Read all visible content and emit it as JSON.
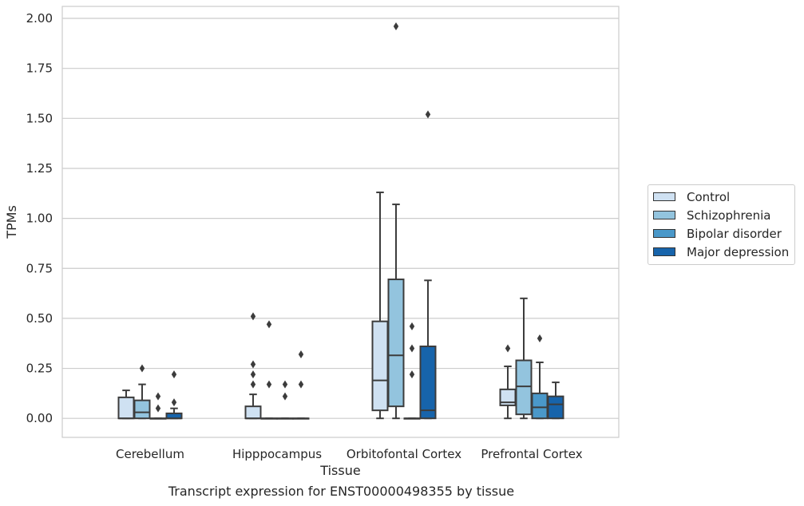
{
  "chart_data": {
    "type": "box",
    "caption": "Transcript expression for ENST00000498355 by tissue",
    "xlabel": "Tissue",
    "ylabel": "TPMs",
    "ylim": [
      -0.095,
      2.06
    ],
    "yticks": [
      "0.00",
      "0.25",
      "0.50",
      "0.75",
      "1.00",
      "1.25",
      "1.50",
      "1.75",
      "2.00"
    ],
    "ytick_values": [
      0,
      0.25,
      0.5,
      0.75,
      1.0,
      1.25,
      1.5,
      1.75,
      2.0
    ],
    "grid": "horizontal",
    "legend_position": "right",
    "categories": [
      "Cerebellum",
      "Hipppocampus",
      "Orbitofontal Cortex",
      "Prefrontal Cortex"
    ],
    "series": [
      {
        "name": "Control",
        "color": "#cfe1f2",
        "boxes": [
          {
            "whislo": 0,
            "q1": 0,
            "med": 0,
            "q3": 0.105,
            "whishi": 0.14,
            "fliers": []
          },
          {
            "whislo": 0,
            "q1": 0,
            "med": 0,
            "q3": 0.06,
            "whishi": 0.12,
            "fliers": [
              0.17,
              0.22,
              0.27,
              0.51
            ]
          },
          {
            "whislo": 0,
            "q1": 0.04,
            "med": 0.19,
            "q3": 0.485,
            "whishi": 1.13,
            "fliers": []
          },
          {
            "whislo": 0,
            "q1": 0.065,
            "med": 0.08,
            "q3": 0.145,
            "whishi": 0.26,
            "fliers": [
              0.35
            ]
          }
        ]
      },
      {
        "name": "Schizophrenia",
        "color": "#93c4de",
        "boxes": [
          {
            "whislo": 0,
            "q1": 0,
            "med": 0.03,
            "q3": 0.09,
            "whishi": 0.17,
            "fliers": [
              0.25
            ]
          },
          {
            "whislo": 0,
            "q1": 0,
            "med": 0,
            "q3": 0,
            "whishi": 0,
            "fliers": [
              0.17,
              0.47
            ]
          },
          {
            "whislo": 0,
            "q1": 0.06,
            "med": 0.315,
            "q3": 0.695,
            "whishi": 1.07,
            "fliers": [
              1.96
            ]
          },
          {
            "whislo": 0,
            "q1": 0.02,
            "med": 0.16,
            "q3": 0.29,
            "whishi": 0.6,
            "fliers": []
          }
        ]
      },
      {
        "name": "Bipolar disorder",
        "color": "#4a98c9",
        "boxes": [
          {
            "whislo": 0,
            "q1": 0,
            "med": 0,
            "q3": 0,
            "whishi": 0,
            "fliers": [
              0.05,
              0.11
            ]
          },
          {
            "whislo": 0,
            "q1": 0,
            "med": 0,
            "q3": 0,
            "whishi": 0,
            "fliers": [
              0.11,
              0.17
            ]
          },
          {
            "whislo": 0,
            "q1": 0,
            "med": 0,
            "q3": 0,
            "whishi": 0,
            "fliers": [
              0.22,
              0.35,
              0.46
            ]
          },
          {
            "whislo": 0,
            "q1": 0,
            "med": 0.055,
            "q3": 0.125,
            "whishi": 0.28,
            "fliers": [
              0.4
            ]
          }
        ]
      },
      {
        "name": "Major depression",
        "color": "#1764ab",
        "boxes": [
          {
            "whislo": 0,
            "q1": 0,
            "med": 0,
            "q3": 0.025,
            "whishi": 0.05,
            "fliers": [
              0.08,
              0.22
            ]
          },
          {
            "whislo": 0,
            "q1": 0,
            "med": 0,
            "q3": 0,
            "whishi": 0,
            "fliers": [
              0.17,
              0.32
            ]
          },
          {
            "whislo": 0,
            "q1": 0,
            "med": 0.04,
            "q3": 0.36,
            "whishi": 0.69,
            "fliers": [
              1.52
            ]
          },
          {
            "whislo": 0,
            "q1": 0,
            "med": 0.07,
            "q3": 0.11,
            "whishi": 0.18,
            "fliers": []
          }
        ]
      }
    ]
  }
}
